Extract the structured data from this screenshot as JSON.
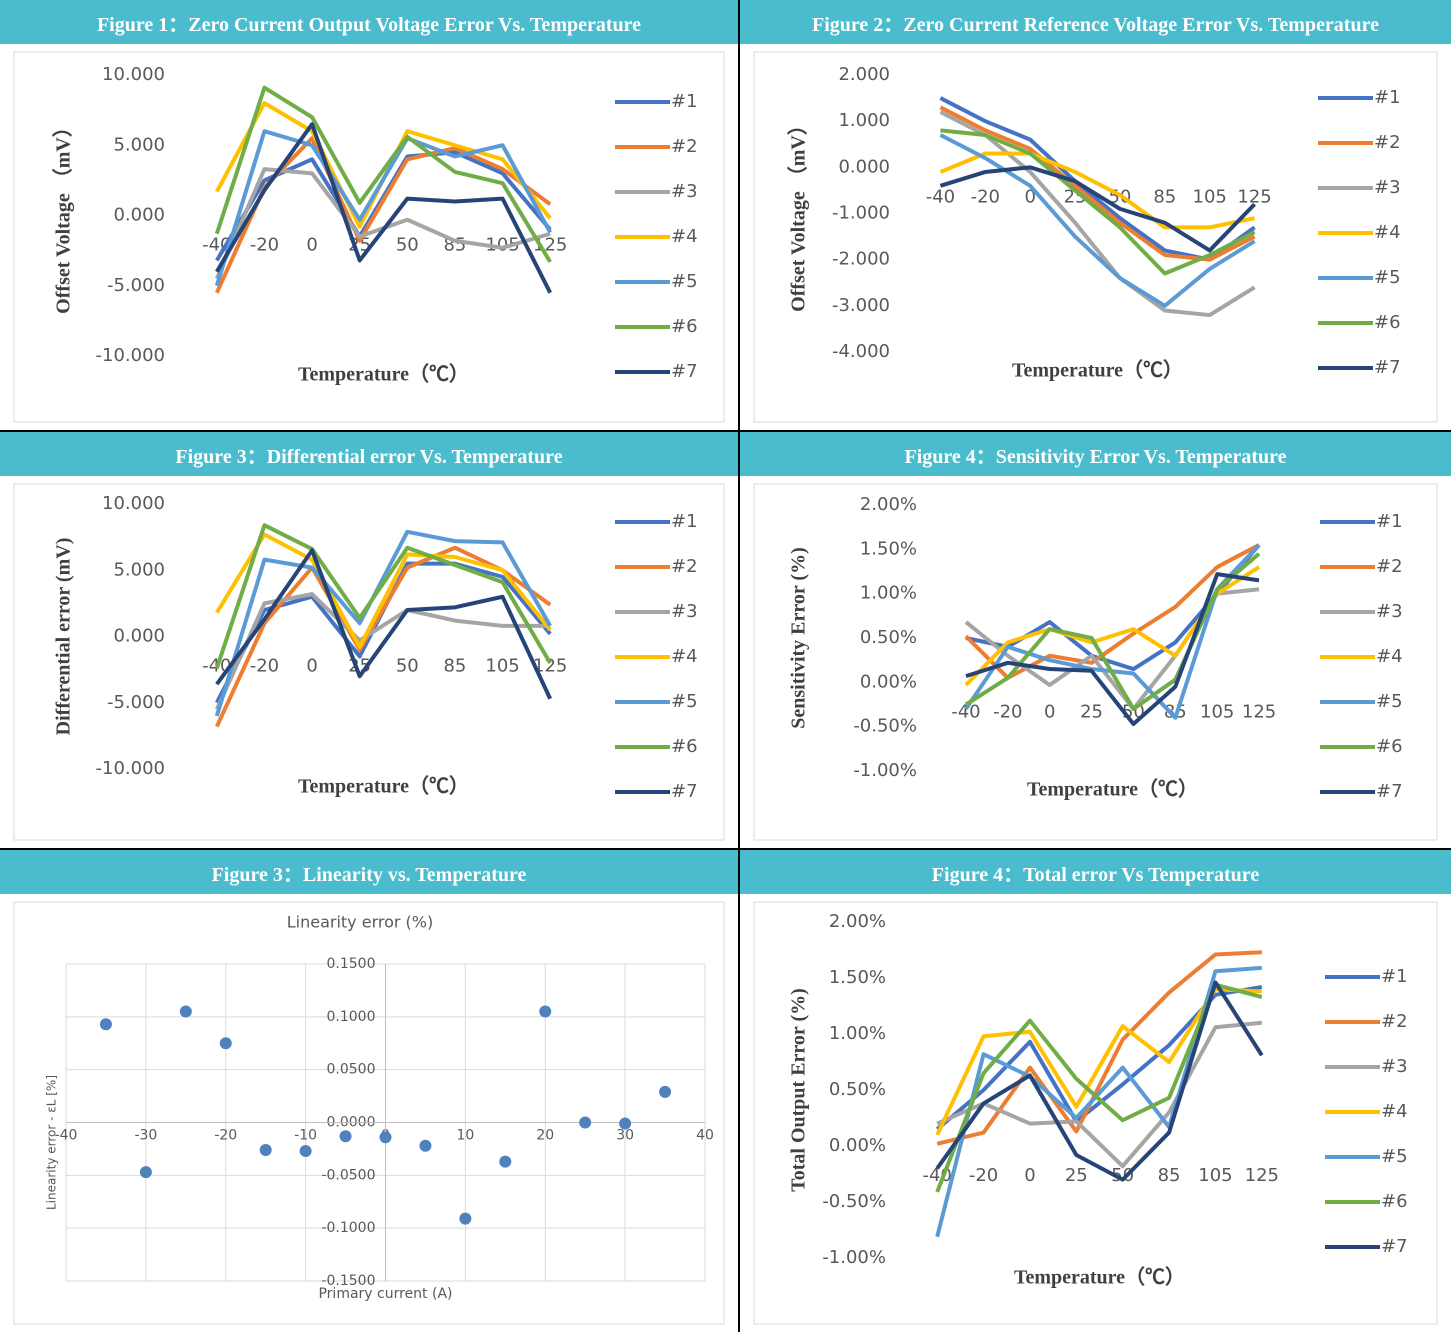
{
  "chart_data": [
    {
      "type": "line",
      "caption": "Figure 1：Zero Current Output Voltage Error Vs. Temperature",
      "x_label": "Temperature（℃）",
      "y_label": "Offset Voltage （mV）",
      "categories": [
        -40,
        -20,
        0,
        25,
        50,
        85,
        105,
        125
      ],
      "ylim": [
        -10,
        10
      ],
      "yticks": [
        {
          "value": -10,
          "label": "-10.000"
        },
        {
          "value": -5,
          "label": "-5.000"
        },
        {
          "value": 0,
          "label": "0.000"
        },
        {
          "value": 5,
          "label": "5.000"
        },
        {
          "value": 10,
          "label": "10.000"
        }
      ],
      "grid": false,
      "legend": "right",
      "series": [
        {
          "name": "#1",
          "color": "#4472c4",
          "values": [
            -3.2,
            2.5,
            4.0,
            -1.5,
            4.2,
            4.5,
            3.0,
            -1.0
          ]
        },
        {
          "name": "#2",
          "color": "#ed7d31",
          "values": [
            -5.5,
            2.0,
            5.5,
            -1.8,
            4.0,
            4.8,
            3.3,
            0.8
          ]
        },
        {
          "name": "#3",
          "color": "#a5a5a5",
          "values": [
            -4.5,
            3.3,
            3.0,
            -1.5,
            -0.3,
            -1.8,
            -2.3,
            -1.3
          ]
        },
        {
          "name": "#4",
          "color": "#ffc000",
          "values": [
            1.7,
            8.0,
            6.0,
            -0.8,
            6.0,
            5.0,
            4.0,
            -0.2
          ]
        },
        {
          "name": "#5",
          "color": "#5b9bd5",
          "values": [
            -5.0,
            6.0,
            5.0,
            -0.3,
            5.5,
            4.2,
            5.0,
            -1.2
          ]
        },
        {
          "name": "#6",
          "color": "#70ad47",
          "values": [
            -1.3,
            9.1,
            7.0,
            0.9,
            5.6,
            3.1,
            2.3,
            -3.3
          ]
        },
        {
          "name": "#7",
          "color": "#264478",
          "values": [
            -4.0,
            1.8,
            6.5,
            -3.2,
            1.2,
            1.0,
            1.2,
            -5.5
          ]
        }
      ]
    },
    {
      "type": "line",
      "caption": "Figure 2：Zero Current Reference Voltage Error Vs. Temperature",
      "x_label": "Temperature（℃）",
      "y_label": "Offset Voltage （mV）",
      "categories": [
        -40,
        -20,
        0,
        25,
        50,
        85,
        105,
        125
      ],
      "ylim": [
        -4,
        2
      ],
      "yticks": [
        {
          "value": -4,
          "label": "-4.000"
        },
        {
          "value": -3,
          "label": "-3.000"
        },
        {
          "value": -2,
          "label": "-2.000"
        },
        {
          "value": -1,
          "label": "-1.000"
        },
        {
          "value": 0,
          "label": "0.000"
        },
        {
          "value": 1,
          "label": "1.000"
        },
        {
          "value": 2,
          "label": "2.000"
        }
      ],
      "grid": false,
      "legend": "right",
      "series": [
        {
          "name": "#1",
          "color": "#4472c4",
          "values": [
            1.5,
            1.0,
            0.6,
            -0.3,
            -1.1,
            -1.8,
            -2.0,
            -1.3
          ]
        },
        {
          "name": "#2",
          "color": "#ed7d31",
          "values": [
            1.3,
            0.8,
            0.4,
            -0.4,
            -1.2,
            -1.9,
            -2.0,
            -1.5
          ]
        },
        {
          "name": "#3",
          "color": "#a5a5a5",
          "values": [
            1.2,
            0.7,
            -0.1,
            -1.2,
            -2.4,
            -3.1,
            -3.2,
            -2.6
          ]
        },
        {
          "name": "#4",
          "color": "#ffc000",
          "values": [
            -0.1,
            0.3,
            0.3,
            -0.1,
            -0.6,
            -1.3,
            -1.3,
            -1.1
          ]
        },
        {
          "name": "#5",
          "color": "#5b9bd5",
          "values": [
            0.7,
            0.2,
            -0.4,
            -1.5,
            -2.4,
            -3.0,
            -2.2,
            -1.6
          ]
        },
        {
          "name": "#6",
          "color": "#70ad47",
          "values": [
            0.8,
            0.7,
            0.3,
            -0.5,
            -1.3,
            -2.3,
            -1.9,
            -1.4
          ]
        },
        {
          "name": "#7",
          "color": "#264478",
          "values": [
            -0.4,
            -0.1,
            0.0,
            -0.3,
            -0.9,
            -1.2,
            -1.8,
            -0.8
          ]
        }
      ]
    },
    {
      "type": "line",
      "caption": "Figure 3：Differential error Vs. Temperature",
      "x_label": "Temperature（℃）",
      "y_label": "Differential error (mV)",
      "categories": [
        -40,
        -20,
        0,
        25,
        50,
        85,
        105,
        125
      ],
      "ylim": [
        -10,
        10
      ],
      "yticks": [
        {
          "value": -10,
          "label": "-10.000"
        },
        {
          "value": -5,
          "label": "-5.000"
        },
        {
          "value": 0,
          "label": "0.000"
        },
        {
          "value": 5,
          "label": "5.000"
        },
        {
          "value": 10,
          "label": "10.000"
        }
      ],
      "grid": false,
      "legend": "right",
      "series": [
        {
          "name": "#1",
          "color": "#4472c4",
          "values": [
            -5.0,
            2.0,
            3.0,
            -1.5,
            5.5,
            5.5,
            4.5,
            0.2
          ]
        },
        {
          "name": "#2",
          "color": "#ed7d31",
          "values": [
            -6.8,
            1.0,
            5.2,
            -1.0,
            5.2,
            6.7,
            5.0,
            2.4
          ]
        },
        {
          "name": "#3",
          "color": "#a5a5a5",
          "values": [
            -5.5,
            2.5,
            3.2,
            -0.3,
            2.0,
            1.2,
            0.8,
            0.8
          ]
        },
        {
          "name": "#4",
          "color": "#ffc000",
          "values": [
            1.8,
            7.7,
            5.8,
            -0.8,
            6.2,
            6.0,
            5.0,
            0.5
          ]
        },
        {
          "name": "#5",
          "color": "#5b9bd5",
          "values": [
            -6.0,
            5.8,
            5.2,
            1.0,
            7.9,
            7.2,
            7.1,
            0.8
          ]
        },
        {
          "name": "#6",
          "color": "#70ad47",
          "values": [
            -2.4,
            8.4,
            6.6,
            1.4,
            6.7,
            5.4,
            4.1,
            -2.0
          ]
        },
        {
          "name": "#7",
          "color": "#264478",
          "values": [
            -3.6,
            1.3,
            6.5,
            -3.0,
            2.0,
            2.2,
            3.0,
            -4.7
          ]
        }
      ]
    },
    {
      "type": "line",
      "caption": "Figure 4：Sensitivity Error Vs. Temperature",
      "x_label": "Temperature（℃）",
      "y_label": "Sensitivity Error (%)",
      "categories": [
        -40,
        -20,
        0,
        25,
        50,
        85,
        105,
        125
      ],
      "ylim": [
        -1,
        2
      ],
      "yticks": [
        {
          "value": -1,
          "label": "-1.00%"
        },
        {
          "value": -0.5,
          "label": "-0.50%"
        },
        {
          "value": 0,
          "label": "0.00%"
        },
        {
          "value": 0.5,
          "label": "0.50%"
        },
        {
          "value": 1,
          "label": "1.00%"
        },
        {
          "value": 1.5,
          "label": "1.50%"
        },
        {
          "value": 2,
          "label": "2.00%"
        }
      ],
      "grid": false,
      "legend": "right",
      "series": [
        {
          "name": "#1",
          "color": "#4472c4",
          "values": [
            0.5,
            0.4,
            0.68,
            0.3,
            0.15,
            0.45,
            1.0,
            1.55
          ]
        },
        {
          "name": "#2",
          "color": "#ed7d31",
          "values": [
            0.52,
            0.05,
            0.3,
            0.22,
            0.55,
            0.85,
            1.3,
            1.55
          ]
        },
        {
          "name": "#3",
          "color": "#a5a5a5",
          "values": [
            0.68,
            0.3,
            -0.03,
            0.3,
            -0.3,
            0.3,
            1.0,
            1.05
          ]
        },
        {
          "name": "#4",
          "color": "#ffc000",
          "values": [
            -0.03,
            0.45,
            0.6,
            0.45,
            0.6,
            0.3,
            1.0,
            1.3
          ]
        },
        {
          "name": "#5",
          "color": "#5b9bd5",
          "values": [
            -0.3,
            0.4,
            0.25,
            0.15,
            0.1,
            -0.4,
            1.05,
            1.55
          ]
        },
        {
          "name": "#6",
          "color": "#70ad47",
          "values": [
            -0.25,
            0.05,
            0.6,
            0.5,
            -0.3,
            0.03,
            1.05,
            1.45
          ]
        },
        {
          "name": "#7",
          "color": "#264478",
          "values": [
            0.07,
            0.22,
            0.15,
            0.13,
            -0.47,
            -0.05,
            1.22,
            1.15
          ]
        }
      ]
    },
    {
      "type": "scatter",
      "caption": "Figure 3：Linearity vs. Temperature",
      "title": "Linearity error (%)",
      "x_label": "Primary current (A)",
      "y_label": "Linearity error - εL [%]",
      "color": "#4f81bd",
      "grid": true,
      "xlim": [
        -40,
        40
      ],
      "xticks": [
        -40,
        -30,
        -20,
        -10,
        0,
        10,
        20,
        30,
        40
      ],
      "ylim": [
        -0.15,
        0.15
      ],
      "yticks": [
        {
          "value": -0.15,
          "label": "-0.1500"
        },
        {
          "value": -0.1,
          "label": "-0.1000"
        },
        {
          "value": -0.05,
          "label": "-0.0500"
        },
        {
          "value": 0,
          "label": "0.0000"
        },
        {
          "value": 0.05,
          "label": "0.0500"
        },
        {
          "value": 0.1,
          "label": "0.1000"
        },
        {
          "value": 0.15,
          "label": "0.1500"
        }
      ],
      "x": [
        -35,
        -30,
        -25,
        -20,
        -15,
        -10,
        -5,
        0,
        5,
        10,
        15,
        20,
        25,
        30,
        35
      ],
      "values": [
        0.093,
        -0.047,
        0.105,
        0.075,
        -0.026,
        -0.027,
        -0.013,
        -0.014,
        -0.022,
        -0.091,
        -0.037,
        0.105,
        0.0,
        -0.001,
        0.029
      ]
    },
    {
      "type": "line",
      "caption": "Figure 4：Total error Vs Temperature",
      "x_label": "Temperature（℃）",
      "y_label": "Total Output Error (%)",
      "categories": [
        -40,
        -20,
        0,
        25,
        50,
        85,
        105,
        125
      ],
      "ylim": [
        -1,
        2
      ],
      "yticks": [
        {
          "value": -1,
          "label": "-1.00%"
        },
        {
          "value": -0.5,
          "label": "-0.50%"
        },
        {
          "value": 0,
          "label": "0.00%"
        },
        {
          "value": 0.5,
          "label": "0.50%"
        },
        {
          "value": 1,
          "label": "1.00%"
        },
        {
          "value": 1.5,
          "label": "1.50%"
        },
        {
          "value": 2,
          "label": "2.00%"
        }
      ],
      "grid": false,
      "legend": "right",
      "series": [
        {
          "name": "#1",
          "color": "#4472c4",
          "values": [
            0.15,
            0.5,
            0.93,
            0.22,
            0.55,
            0.9,
            1.35,
            1.42
          ]
        },
        {
          "name": "#2",
          "color": "#ed7d31",
          "values": [
            0.02,
            0.12,
            0.7,
            0.13,
            0.95,
            1.37,
            1.71,
            1.73
          ]
        },
        {
          "name": "#3",
          "color": "#a5a5a5",
          "values": [
            0.2,
            0.38,
            0.2,
            0.22,
            -0.18,
            0.3,
            1.06,
            1.1
          ]
        },
        {
          "name": "#4",
          "color": "#ffc000",
          "values": [
            0.1,
            0.98,
            1.02,
            0.35,
            1.07,
            0.75,
            1.4,
            1.38
          ]
        },
        {
          "name": "#5",
          "color": "#5b9bd5",
          "values": [
            -0.81,
            0.82,
            0.62,
            0.25,
            0.7,
            0.17,
            1.56,
            1.59
          ]
        },
        {
          "name": "#6",
          "color": "#70ad47",
          "values": [
            -0.41,
            0.65,
            1.12,
            0.6,
            0.23,
            0.43,
            1.44,
            1.33
          ]
        },
        {
          "name": "#7",
          "color": "#264478",
          "values": [
            -0.2,
            0.38,
            0.63,
            -0.08,
            -0.3,
            0.12,
            1.46,
            0.81
          ]
        }
      ]
    }
  ]
}
